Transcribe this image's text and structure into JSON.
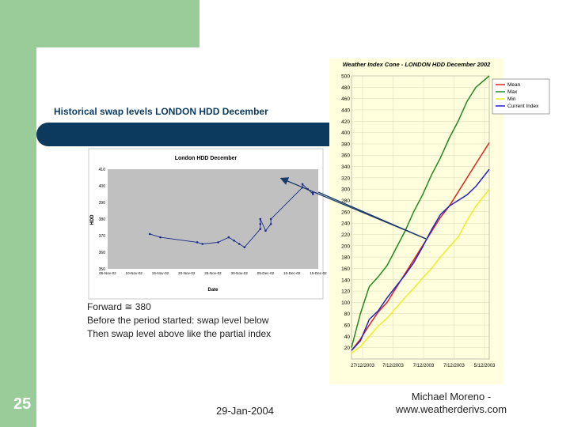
{
  "slide": {
    "title": "Historical swap levels LONDON HDD December",
    "body_lines": [
      "Forward ≅ 380",
      "Before the period started: swap level below",
      "Then swap level above like the partial index"
    ],
    "slide_number": "25",
    "date": "29-Jan-2004",
    "author_line1": "Michael Moreno -",
    "author_line2": "www.weatherderivs.com"
  },
  "colors": {
    "sidebar_green": "#99cc99",
    "title_bar": "#0b3a5e",
    "mean": "#dd2222",
    "max": "#228822",
    "min": "#eeee22",
    "current": "#2222cc",
    "right_chart_bg": "#ffffdd"
  },
  "chart_data": [
    {
      "type": "line",
      "title": "London HDD December",
      "xlabel": "Date",
      "ylabel": "HDD",
      "categories": [
        "05-Nov-02",
        "10-Nov-02",
        "15-Nov-02",
        "20-Nov-02",
        "25-Nov-02",
        "30-Nov-02",
        "05-Dec-02",
        "10-Dec-02",
        "15-Dec-02"
      ],
      "ytick_labels": [
        "350",
        "360",
        "370",
        "380",
        "390",
        "400",
        "410"
      ],
      "ylim": [
        350,
        410
      ],
      "series": [
        {
          "points": [
            {
              "x": 8,
              "y": 371
            },
            {
              "x": 10,
              "y": 369
            },
            {
              "x": 17,
              "y": 366
            },
            {
              "x": 18,
              "y": 365
            },
            {
              "x": 21,
              "y": 366
            },
            {
              "x": 23,
              "y": 369
            },
            {
              "x": 24,
              "y": 367
            },
            {
              "x": 25,
              "y": 365
            },
            {
              "x": 26,
              "y": 363
            },
            {
              "x": 29,
              "y": 374
            },
            {
              "x": 29,
              "y": 377
            },
            {
              "x": 29,
              "y": 380
            },
            {
              "x": 30,
              "y": 373
            },
            {
              "x": 31,
              "y": 377
            },
            {
              "x": 31,
              "y": 380
            },
            {
              "x": 37,
              "y": 399
            },
            {
              "x": 37,
              "y": 401
            },
            {
              "x": 38,
              "y": 398
            },
            {
              "x": 39,
              "y": 395
            },
            {
              "x": 39,
              "y": 396
            }
          ]
        }
      ],
      "grid": false
    },
    {
      "type": "line",
      "title": "Weather Index Cone - LONDON HDD December 2002",
      "x_tick_labels": [
        "27/12/2003",
        "7/12/2003",
        "7/12/2003",
        "7/12/2003",
        "5/12/2003"
      ],
      "ytick_labels": [
        "20",
        "40",
        "60",
        "80",
        "100",
        "120",
        "140",
        "160",
        "180",
        "200",
        "220",
        "240",
        "260",
        "280",
        "300",
        "320",
        "340",
        "360",
        "380",
        "400",
        "420",
        "440",
        "460",
        "480",
        "500"
      ],
      "ylim": [
        0,
        500
      ],
      "xlim": [
        0,
        31
      ],
      "legend_position": "top-right",
      "series": [
        {
          "name": "Mean",
          "x": [
            0,
            2,
            4,
            6,
            8,
            10,
            12,
            14,
            16,
            18,
            20,
            22,
            24,
            26,
            28,
            31
          ],
          "values": [
            15,
            35,
            60,
            83,
            100,
            125,
            150,
            175,
            200,
            225,
            250,
            270,
            295,
            320,
            345,
            382
          ]
        },
        {
          "name": "Max",
          "x": [
            0,
            2,
            4,
            6,
            8,
            10,
            12,
            14,
            16,
            18,
            20,
            22,
            24,
            26,
            28,
            31
          ],
          "values": [
            20,
            80,
            128,
            145,
            165,
            195,
            225,
            260,
            290,
            325,
            355,
            390,
            420,
            455,
            480,
            500
          ]
        },
        {
          "name": "Min",
          "x": [
            0,
            2,
            4,
            6,
            8,
            10,
            12,
            14,
            16,
            18,
            20,
            22,
            24,
            26,
            28,
            31
          ],
          "values": [
            10,
            22,
            40,
            58,
            72,
            90,
            108,
            125,
            143,
            160,
            180,
            198,
            215,
            245,
            270,
            300
          ]
        },
        {
          "name": "Current Index",
          "x": [
            0,
            2,
            4,
            6,
            8,
            10,
            12,
            14,
            16,
            18,
            20,
            22,
            24,
            26,
            28,
            31
          ],
          "values": [
            15,
            32,
            70,
            85,
            108,
            128,
            148,
            170,
            198,
            228,
            255,
            270,
            280,
            290,
            305,
            335
          ]
        }
      ],
      "grid": true
    }
  ]
}
